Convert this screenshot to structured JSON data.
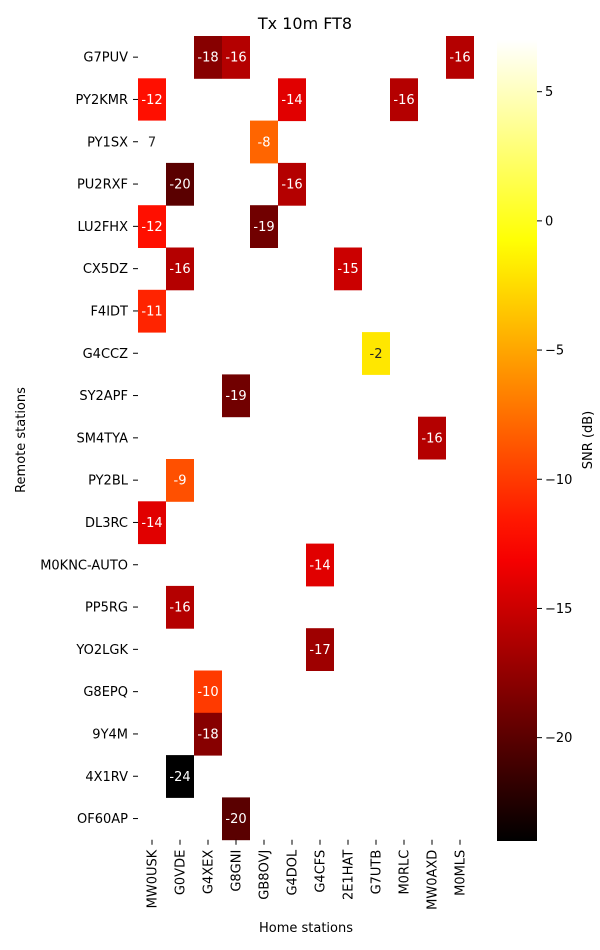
{
  "chart_data": {
    "type": "heatmap",
    "title": "Tx 10m FT8",
    "xlabel": "Home stations",
    "ylabel": "Remote stations",
    "colorbar_label": "SNR (dB)",
    "colormap": "hot",
    "vmin": -24,
    "vmax": 7,
    "colorbar_ticks": [
      5,
      0,
      -5,
      -10,
      -15,
      -20
    ],
    "x_categories": [
      "MW0USK",
      "G0VDE",
      "G4XEX",
      "G8GNI",
      "GB8OVJ",
      "G4DOL",
      "G4CFS",
      "2E1HAT",
      "G7UTB",
      "M0RLC",
      "MW0AXD",
      "M0MLS"
    ],
    "y_categories": [
      "G7PUV",
      "PY2KMR",
      "PY1SX",
      "PU2RXF",
      "LU2FHX",
      "CX5DZ",
      "F4IDT",
      "G4CCZ",
      "SY2APF",
      "SM4TYA",
      "PY2BL",
      "DL3RC",
      "M0KNC-AUTO",
      "PP5RG",
      "YO2LGK",
      "G8EPQ",
      "9Y4M",
      "4X1RV",
      "OF60AP"
    ],
    "values": [
      [
        null,
        null,
        -18,
        -16,
        null,
        null,
        null,
        null,
        null,
        null,
        null,
        -16
      ],
      [
        -12,
        null,
        null,
        null,
        null,
        -14,
        null,
        null,
        null,
        -16,
        null,
        null
      ],
      [
        7,
        null,
        null,
        null,
        -8,
        null,
        null,
        null,
        null,
        null,
        null,
        null
      ],
      [
        null,
        -20,
        null,
        null,
        null,
        -16,
        null,
        null,
        null,
        null,
        null,
        null
      ],
      [
        -12,
        null,
        null,
        null,
        -19,
        null,
        null,
        null,
        null,
        null,
        null,
        null
      ],
      [
        null,
        -16,
        null,
        null,
        null,
        null,
        null,
        -15,
        null,
        null,
        null,
        null
      ],
      [
        -11,
        null,
        null,
        null,
        null,
        null,
        null,
        null,
        null,
        null,
        null,
        null
      ],
      [
        null,
        null,
        null,
        null,
        null,
        null,
        null,
        null,
        -2,
        null,
        null,
        null
      ],
      [
        null,
        null,
        null,
        -19,
        null,
        null,
        null,
        null,
        null,
        null,
        null,
        null
      ],
      [
        null,
        null,
        null,
        null,
        null,
        null,
        null,
        null,
        null,
        null,
        -16,
        null
      ],
      [
        null,
        -9,
        null,
        null,
        null,
        null,
        null,
        null,
        null,
        null,
        null,
        null
      ],
      [
        -14,
        null,
        null,
        null,
        null,
        null,
        null,
        null,
        null,
        null,
        null,
        null
      ],
      [
        null,
        null,
        null,
        null,
        null,
        null,
        -14,
        null,
        null,
        null,
        null,
        null
      ],
      [
        null,
        -16,
        null,
        null,
        null,
        null,
        null,
        null,
        null,
        null,
        null,
        null
      ],
      [
        null,
        null,
        null,
        null,
        null,
        null,
        -17,
        null,
        null,
        null,
        null,
        null
      ],
      [
        null,
        null,
        -10,
        null,
        null,
        null,
        null,
        null,
        null,
        null,
        null,
        null
      ],
      [
        null,
        null,
        -18,
        null,
        null,
        null,
        null,
        null,
        null,
        null,
        null,
        null
      ],
      [
        null,
        -24,
        null,
        null,
        null,
        null,
        null,
        null,
        null,
        null,
        null,
        null
      ],
      [
        null,
        null,
        null,
        -20,
        null,
        null,
        null,
        null,
        null,
        null,
        null,
        null
      ]
    ]
  }
}
